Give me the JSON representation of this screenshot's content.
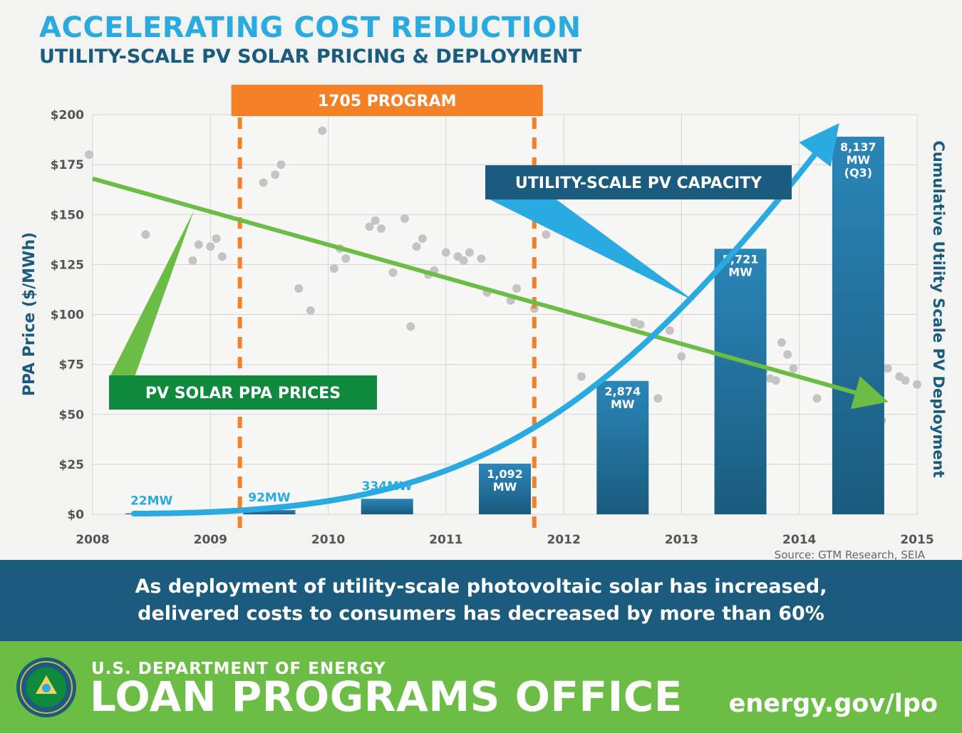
{
  "header": {
    "title": "ACCELERATING COST REDUCTION",
    "subtitle": "UTILITY-SCALE PV SOLAR PRICING & DEPLOYMENT"
  },
  "chart_data": {
    "type": "bar",
    "ylabel": "PPA Price ($/MWh)",
    "y2label": "Cumulative Utility Scale PV Deployment",
    "xlim": [
      2008,
      2015
    ],
    "ylim": [
      0,
      200
    ],
    "x_ticks": [
      "2008",
      "2009",
      "2010",
      "2011",
      "2012",
      "2013",
      "2014",
      "2015"
    ],
    "y_ticks": [
      "$0",
      "$25",
      "$50",
      "$75",
      "$100",
      "$125",
      "$150",
      "$175",
      "$200"
    ],
    "grid": true,
    "program": {
      "label": "1705 PROGRAM",
      "start": 2009.25,
      "end": 2011.75
    },
    "bars": [
      {
        "x": 2008.5,
        "mw": 22,
        "label": [
          "22MW"
        ]
      },
      {
        "x": 2009.5,
        "mw": 92,
        "label": [
          "92MW"
        ]
      },
      {
        "x": 2010.5,
        "mw": 334,
        "label": [
          "334MW"
        ]
      },
      {
        "x": 2011.5,
        "mw": 1092,
        "label": [
          "1,092",
          "MW"
        ]
      },
      {
        "x": 2012.5,
        "mw": 2874,
        "label": [
          "2,874",
          "MW"
        ]
      },
      {
        "x": 2013.5,
        "mw": 5721,
        "label": [
          "5,721",
          "MW"
        ]
      },
      {
        "x": 2014.5,
        "mw": 8137,
        "label": [
          "8,137",
          "MW",
          "(Q3)"
        ]
      }
    ],
    "capacity_axis_max_mw": 8137,
    "capacity_axis_max_price": 189,
    "scatter": [
      [
        2007.97,
        180
      ],
      [
        2008.45,
        140
      ],
      [
        2008.85,
        127
      ],
      [
        2008.9,
        135
      ],
      [
        2009.0,
        134
      ],
      [
        2009.05,
        138
      ],
      [
        2009.1,
        129
      ],
      [
        2009.45,
        166
      ],
      [
        2009.55,
        170
      ],
      [
        2009.6,
        175
      ],
      [
        2009.75,
        113
      ],
      [
        2009.85,
        102
      ],
      [
        2009.95,
        192
      ],
      [
        2010.05,
        123
      ],
      [
        2010.1,
        133
      ],
      [
        2010.15,
        128
      ],
      [
        2010.35,
        144
      ],
      [
        2010.4,
        147
      ],
      [
        2010.45,
        143
      ],
      [
        2010.55,
        121
      ],
      [
        2010.65,
        148
      ],
      [
        2010.7,
        94
      ],
      [
        2010.75,
        134
      ],
      [
        2010.8,
        138
      ],
      [
        2010.85,
        120
      ],
      [
        2010.9,
        122
      ],
      [
        2011.0,
        131
      ],
      [
        2011.1,
        129
      ],
      [
        2011.15,
        127
      ],
      [
        2011.2,
        131
      ],
      [
        2011.3,
        128
      ],
      [
        2011.35,
        111
      ],
      [
        2011.55,
        107
      ],
      [
        2011.6,
        113
      ],
      [
        2011.75,
        103
      ],
      [
        2011.85,
        140
      ],
      [
        2012.15,
        69
      ],
      [
        2012.5,
        49
      ],
      [
        2012.6,
        96
      ],
      [
        2012.65,
        95
      ],
      [
        2012.8,
        58
      ],
      [
        2012.9,
        92
      ],
      [
        2013.0,
        79
      ],
      [
        2013.4,
        75
      ],
      [
        2013.45,
        49
      ],
      [
        2013.65,
        48
      ],
      [
        2013.7,
        72
      ],
      [
        2013.75,
        68
      ],
      [
        2013.8,
        67
      ],
      [
        2013.85,
        86
      ],
      [
        2013.9,
        80
      ],
      [
        2013.95,
        73
      ],
      [
        2014.15,
        58
      ],
      [
        2014.4,
        58
      ],
      [
        2014.42,
        53
      ],
      [
        2014.45,
        51
      ],
      [
        2014.5,
        55
      ],
      [
        2014.52,
        62
      ],
      [
        2014.55,
        70
      ],
      [
        2014.6,
        67
      ],
      [
        2014.62,
        74
      ],
      [
        2014.7,
        47
      ],
      [
        2014.75,
        73
      ],
      [
        2014.85,
        69
      ],
      [
        2014.9,
        67
      ],
      [
        2015.0,
        65
      ]
    ],
    "trend": {
      "from": [
        2008,
        168
      ],
      "to": [
        2014.65,
        58
      ]
    },
    "callouts": {
      "ppa": "PV SOLAR PPA PRICES",
      "capacity": "UTILITY-SCALE PV CAPACITY"
    },
    "source": "Source: GTM Research, SEIA",
    "colors": {
      "trend": "#6cbd45",
      "curve": "#29abe2",
      "bar_top": "#2a86b8",
      "bar_bottom": "#1a5b7e",
      "program": "#f58025",
      "scatter": "#c4c4c4",
      "ppa_box": "#0f8a3c",
      "capacity_box": "#1a5b7e"
    }
  },
  "band": {
    "line1": "As deployment of utility-scale photovoltaic solar has increased,",
    "line2": "delivered costs to consumers has decreased by more than 60%"
  },
  "footer": {
    "dept": "U.S. DEPARTMENT OF ENERGY",
    "office": "LOAN PROGRAMS OFFICE",
    "url": "energy.gov/lpo",
    "logo_icon": "doe-seal-icon"
  }
}
